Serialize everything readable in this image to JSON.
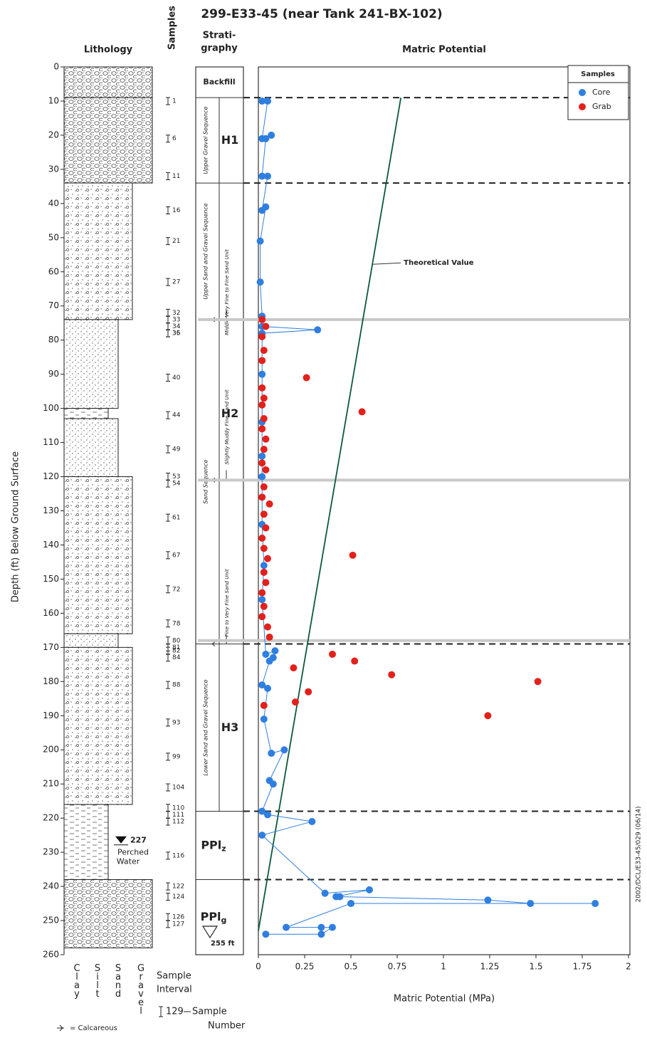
{
  "chart_data": {
    "type": "scatter",
    "title": "299-E33-45 (near Tank 241-BX-102)",
    "panel_title": "Matric Potential",
    "x_label": "Matric Potential (MPa)",
    "y_label": "Depth (ft) Below Ground Surface",
    "xlim": [
      0,
      2
    ],
    "xticks": [
      0,
      0.25,
      0.5,
      0.75,
      1,
      1.25,
      1.5,
      1.75,
      2
    ],
    "ylim": [
      0,
      260
    ],
    "yticks": [
      0,
      10,
      20,
      30,
      40,
      50,
      60,
      70,
      80,
      90,
      100,
      110,
      120,
      130,
      140,
      150,
      160,
      170,
      180,
      190,
      200,
      210,
      220,
      230,
      240,
      250,
      260
    ],
    "y_inverted": true,
    "legend_title": "Samples",
    "legend_position": "upper right",
    "series": [
      {
        "name": "Core",
        "color": "#2f7fe0",
        "connected": true,
        "x": [
          0.02,
          0.05,
          0.02,
          0.07,
          0.04,
          0.02,
          0.05,
          0.02,
          0.04,
          0.01,
          0.01,
          0.02,
          0.02,
          0.32,
          0.02,
          0.02,
          0.02,
          0.02,
          0.02,
          0.02,
          0.03,
          0.02,
          0.04,
          0.09,
          0.08,
          0.06,
          0.02,
          0.05,
          0.03,
          0.07,
          0.14,
          0.06,
          0.08,
          0.02,
          0.05,
          0.29,
          0.02,
          0.36,
          0.6,
          0.42,
          0.44,
          1.24,
          1.47,
          1.82,
          0.5,
          0.15,
          0.34,
          0.4,
          0.34,
          0.04
        ],
        "y": [
          10,
          10,
          21,
          20,
          21,
          32,
          32,
          42,
          41,
          51,
          63,
          73,
          76,
          77,
          78,
          90,
          104,
          114,
          120,
          134,
          146,
          156,
          172,
          171,
          173,
          174,
          181,
          182,
          191,
          201,
          200,
          209,
          210,
          218,
          219,
          221,
          225,
          242,
          241,
          243,
          243,
          244,
          245,
          245,
          245,
          252,
          252,
          252,
          254,
          254
        ]
      },
      {
        "name": "Grab",
        "color": "#e3211c",
        "connected": false,
        "x": [
          0.02,
          0.04,
          0.02,
          0.03,
          0.02,
          0.26,
          0.02,
          0.03,
          0.02,
          0.56,
          0.03,
          0.02,
          0.04,
          0.03,
          0.02,
          0.04,
          0.03,
          0.02,
          0.06,
          0.03,
          0.04,
          0.02,
          0.03,
          0.51,
          0.05,
          0.03,
          0.04,
          0.02,
          0.03,
          0.02,
          0.05,
          0.06,
          0.4,
          0.52,
          0.19,
          0.72,
          1.51,
          0.27,
          0.2,
          0.03,
          1.24
        ],
        "y": [
          74,
          76,
          79,
          83,
          86,
          91,
          94,
          97,
          99,
          101,
          103,
          106,
          109,
          112,
          116,
          118,
          123,
          126,
          128,
          131,
          135,
          138,
          141,
          143,
          144,
          148,
          151,
          154,
          158,
          161,
          164,
          167,
          172,
          174,
          176,
          178,
          180,
          183,
          186,
          187,
          190
        ]
      }
    ],
    "theoretical": {
      "label": "Theoretical Value",
      "color": "#0c5a3a",
      "x": [
        0.77,
        0
      ],
      "y": [
        9,
        253
      ]
    },
    "dashed_boundaries": [
      9,
      34,
      169,
      218,
      238
    ],
    "gray_boundaries": [
      74,
      121,
      168
    ]
  },
  "lithology": {
    "title": "Lithology",
    "units": [
      {
        "top": 0,
        "bottom": 9,
        "pattern": "gravel"
      },
      {
        "top": 9,
        "bottom": 34,
        "pattern": "gravel"
      },
      {
        "top": 34,
        "bottom": 74,
        "pattern": "sandy-gravel"
      },
      {
        "top": 74,
        "bottom": 100,
        "pattern": "sand"
      },
      {
        "top": 100,
        "bottom": 103,
        "pattern": "silt"
      },
      {
        "top": 103,
        "bottom": 120,
        "pattern": "sand"
      },
      {
        "top": 120,
        "bottom": 166,
        "pattern": "sandy-gravel"
      },
      {
        "top": 166,
        "bottom": 170,
        "pattern": "sand"
      },
      {
        "top": 170,
        "bottom": 216,
        "pattern": "sandy-gravel"
      },
      {
        "top": 216,
        "bottom": 238,
        "pattern": "silt"
      },
      {
        "top": 238,
        "bottom": 258,
        "pattern": "gravel"
      }
    ],
    "grain_sizes": [
      "Clay",
      "Silt",
      "Sand",
      "Gravel"
    ],
    "calcareous": "= Calcareous",
    "perched_water": {
      "depth": 227,
      "label": [
        "Perched",
        "Water"
      ]
    },
    "sample_legend": {
      "interval": [
        "Sample",
        "Interval"
      ],
      "number_example": "129",
      "number": [
        "Sample",
        "Number"
      ]
    }
  },
  "samples": {
    "title": "Samples",
    "numbers": [
      "1",
      "6",
      "11",
      "16",
      "21",
      "27",
      "32",
      "33",
      "34",
      "35",
      "36",
      "40",
      "44",
      "49",
      "53",
      "54",
      "61",
      "67",
      "72",
      "78",
      "80",
      "81",
      "82",
      "84",
      "88",
      "93",
      "99",
      "104",
      "110",
      "111",
      "112",
      "116",
      "122",
      "124",
      "126",
      "127"
    ],
    "depths": [
      10,
      21,
      32,
      42,
      51,
      63,
      72,
      74,
      76,
      78,
      78,
      91,
      102,
      112,
      120,
      122,
      132,
      143,
      153,
      163,
      168,
      170,
      171,
      173,
      181,
      192,
      202,
      211,
      217,
      219,
      221,
      231,
      240,
      243,
      249,
      251
    ]
  },
  "stratigraphy": {
    "title": [
      "Strati-",
      "graphy"
    ],
    "units": [
      {
        "label": "Backfill",
        "top": 0,
        "bottom": 9
      },
      {
        "label": "H1",
        "top": 9,
        "bottom": 34
      },
      {
        "label": "H2",
        "top": 34,
        "bottom": 169
      },
      {
        "label": "H3",
        "top": 169,
        "bottom": 218
      },
      {
        "label": "PPl",
        "sub": "z",
        "top": 218,
        "bottom": 238
      },
      {
        "label": "PPl",
        "sub": "g",
        "top": 238,
        "bottom": 260
      }
    ],
    "sequences": [
      {
        "label": "Upper Gravel Sequence",
        "top": 9,
        "bottom": 34
      },
      {
        "label": "Upper Sand and Gravel Sequence",
        "top": 34,
        "bottom": 74
      },
      {
        "label": "Sand Sequence",
        "top": 74,
        "bottom": 169
      },
      {
        "label": "Lower Sand and Gravel Sequence",
        "top": 169,
        "bottom": 218
      }
    ],
    "subunits": [
      {
        "label": "Middle Very Fine to Fine Sand Unit",
        "top": 58,
        "bottom": 74
      },
      {
        "label": "Slightly Muddy Fine Sand Unit",
        "top": 90,
        "bottom": 121
      },
      {
        "label": "Fine to Very Fine Sand Unit",
        "top": 145,
        "bottom": 169
      }
    ],
    "total_depth": {
      "value": 255,
      "label": "255 ft"
    }
  },
  "footnote": "2002/DCL/E33-45/029 (06/14)"
}
